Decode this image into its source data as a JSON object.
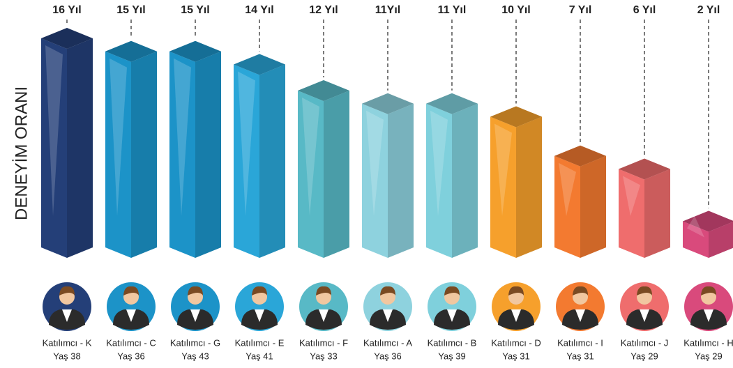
{
  "chart_data": {
    "type": "bar",
    "y_label": "DENEYİM ORANI",
    "categories": [
      "Katılımcı - K",
      "Katılımcı - C",
      "Katılımcı - G",
      "Katılımcı - E",
      "Katılımcı - F",
      "Katılımcı - A",
      "Katılımcı - B",
      "Katılımcı - D",
      "Katılımcı - I",
      "Katılımcı - J",
      "Katılımcı - H"
    ],
    "ages": [
      "Yaş 38",
      "Yaş 36",
      "Yaş 43",
      "Yaş 41",
      "Yaş 33",
      "Yaş 36",
      "Yaş 39",
      "Yaş 31",
      "Yaş 31",
      "Yaş 29",
      "Yaş 29"
    ],
    "values": [
      16,
      15,
      15,
      14,
      12,
      11,
      11,
      10,
      7,
      6,
      2
    ],
    "value_labels": [
      "16 Yıl",
      "15 Yıl",
      "15 Yıl",
      "14 Yıl",
      "12 Yıl",
      "11Yıl",
      "11 Yıl",
      "10 Yıl",
      "7 Yıl",
      "6 Yıl",
      "2 Yıl"
    ],
    "colors": [
      "#243f78",
      "#1c93c8",
      "#1c93c8",
      "#2aa6d8",
      "#58b9c6",
      "#8ed2de",
      "#7fd0dc",
      "#f6a02c",
      "#f37a30",
      "#ef6d6d",
      "#d94a7c"
    ],
    "ylim": [
      0,
      16
    ]
  }
}
